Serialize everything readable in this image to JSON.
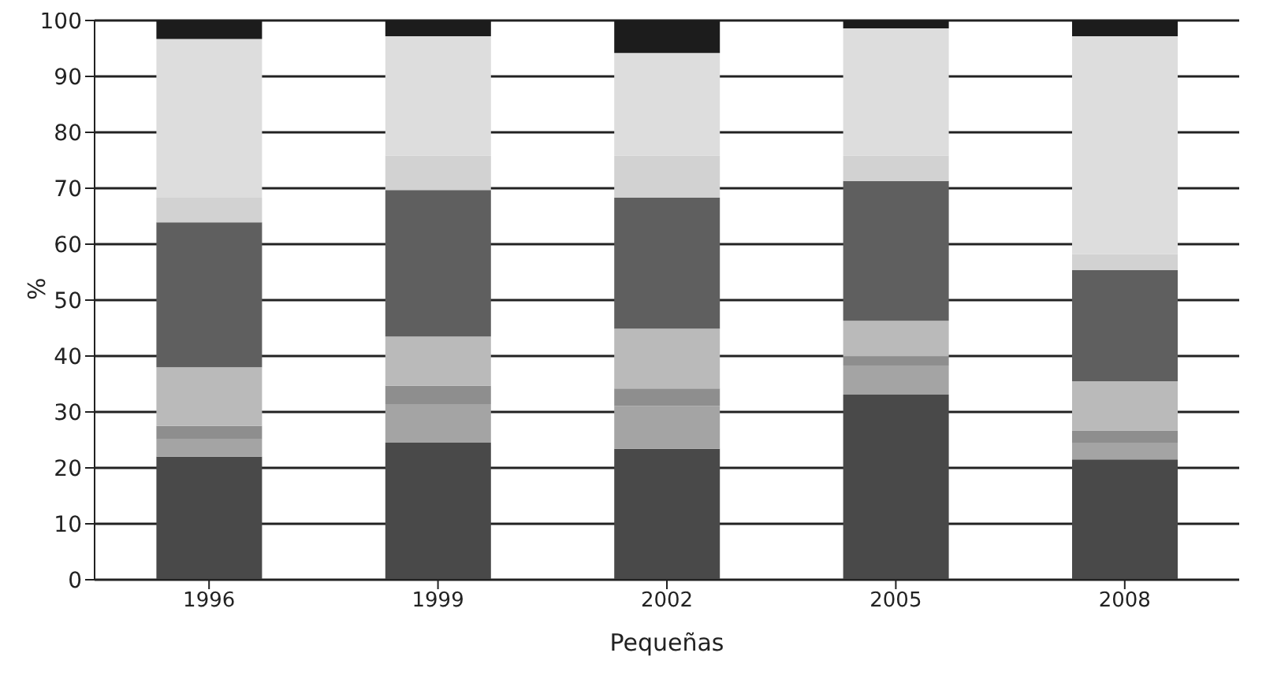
{
  "chart_data": {
    "type": "bar",
    "stacked": true,
    "xlabel": "Pequeñas",
    "ylabel": "%",
    "categories": [
      "1996",
      "1999",
      "2002",
      "2005",
      "2008"
    ],
    "series": [
      {
        "color": "#494949",
        "values": [
          22.0,
          24.5,
          23.4,
          33.1,
          21.5
        ]
      },
      {
        "color": "#a4a4a4",
        "values": [
          3.1,
          6.9,
          7.7,
          5.2,
          3.0
        ]
      },
      {
        "color": "#8e8e8e",
        "values": [
          2.4,
          3.3,
          3.1,
          1.6,
          2.2
        ]
      },
      {
        "color": "#bababa",
        "values": [
          10.5,
          8.8,
          10.7,
          6.4,
          8.8
        ]
      },
      {
        "color": "#5f5f5f",
        "values": [
          25.9,
          26.2,
          23.4,
          25.0,
          19.9
        ]
      },
      {
        "color": "#d2d2d2",
        "values": [
          4.4,
          6.1,
          7.5,
          4.5,
          2.8
        ]
      },
      {
        "color": "#dddddd",
        "values": [
          28.4,
          21.4,
          18.4,
          22.8,
          39.0
        ]
      },
      {
        "color": "#1c1c1c",
        "values": [
          3.3,
          2.8,
          5.8,
          1.4,
          2.8
        ]
      }
    ],
    "ylim": [
      0,
      100
    ],
    "yticks": [
      0,
      10,
      20,
      30,
      40,
      50,
      60,
      70,
      80,
      90,
      100
    ],
    "grid": "y",
    "legend": false
  }
}
